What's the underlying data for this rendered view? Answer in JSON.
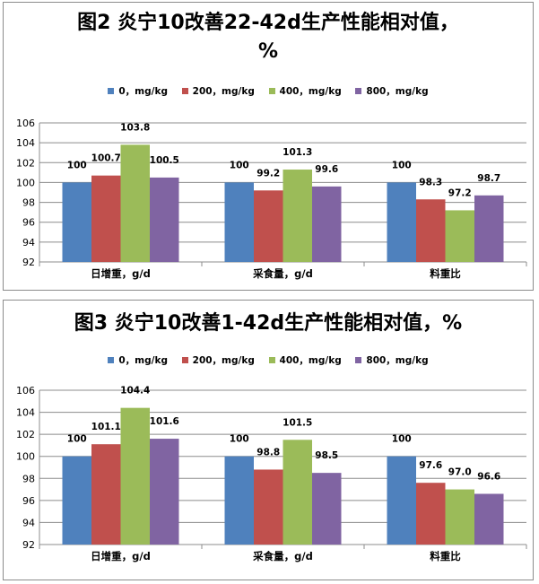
{
  "chart_data": [
    {
      "type": "bar",
      "title_line1": "图2 炎宁10改善22-42d生产性能相对值，",
      "title_line2": "%",
      "categories": [
        "日增重，g/d",
        "采食量，g/d",
        "料重比"
      ],
      "series": [
        {
          "name": "0，mg/kg",
          "color": "#4f81bd",
          "values": [
            100,
            100,
            100
          ],
          "labels": [
            "100",
            "100",
            "100"
          ]
        },
        {
          "name": "200，mg/kg",
          "color": "#c0504d",
          "values": [
            100.7,
            99.2,
            98.3
          ],
          "labels": [
            "100.7",
            "99.2",
            "98.3"
          ]
        },
        {
          "name": "400，mg/kg",
          "color": "#9bbb59",
          "values": [
            103.8,
            101.3,
            97.2
          ],
          "labels": [
            "103.8",
            "101.3",
            "97.2"
          ]
        },
        {
          "name": "800，mg/kg",
          "color": "#8064a2",
          "values": [
            100.5,
            99.6,
            98.7
          ],
          "labels": [
            "100.5",
            "99.6",
            "98.7"
          ]
        }
      ],
      "ylim": [
        92,
        106
      ],
      "yticks": [
        "92",
        "94",
        "96",
        "98",
        "100",
        "102",
        "104",
        "106"
      ],
      "grid": true,
      "legend": "top"
    },
    {
      "type": "bar",
      "title_line1": "图3 炎宁10改善1-42d生产性能相对值，%",
      "title_line2": "",
      "categories": [
        "日增重，g/d",
        "采食量，g/d",
        "料重比"
      ],
      "series": [
        {
          "name": "0，mg/kg",
          "color": "#4f81bd",
          "values": [
            100,
            100,
            100
          ],
          "labels": [
            "100",
            "100",
            "100"
          ]
        },
        {
          "name": "200，mg/kg",
          "color": "#c0504d",
          "values": [
            101.1,
            98.8,
            97.6
          ],
          "labels": [
            "101.1",
            "98.8",
            "97.6"
          ]
        },
        {
          "name": "400，mg/kg",
          "color": "#9bbb59",
          "values": [
            104.4,
            101.5,
            97.0
          ],
          "labels": [
            "104.4",
            "101.5",
            "97.0"
          ]
        },
        {
          "name": "800，mg/kg",
          "color": "#8064a2",
          "values": [
            101.6,
            98.5,
            96.6
          ],
          "labels": [
            "101.6",
            "98.5",
            "96.6"
          ]
        }
      ],
      "ylim": [
        92,
        106
      ],
      "yticks": [
        "92",
        "94",
        "96",
        "98",
        "100",
        "102",
        "104",
        "106"
      ],
      "grid": true,
      "legend": "top"
    }
  ]
}
